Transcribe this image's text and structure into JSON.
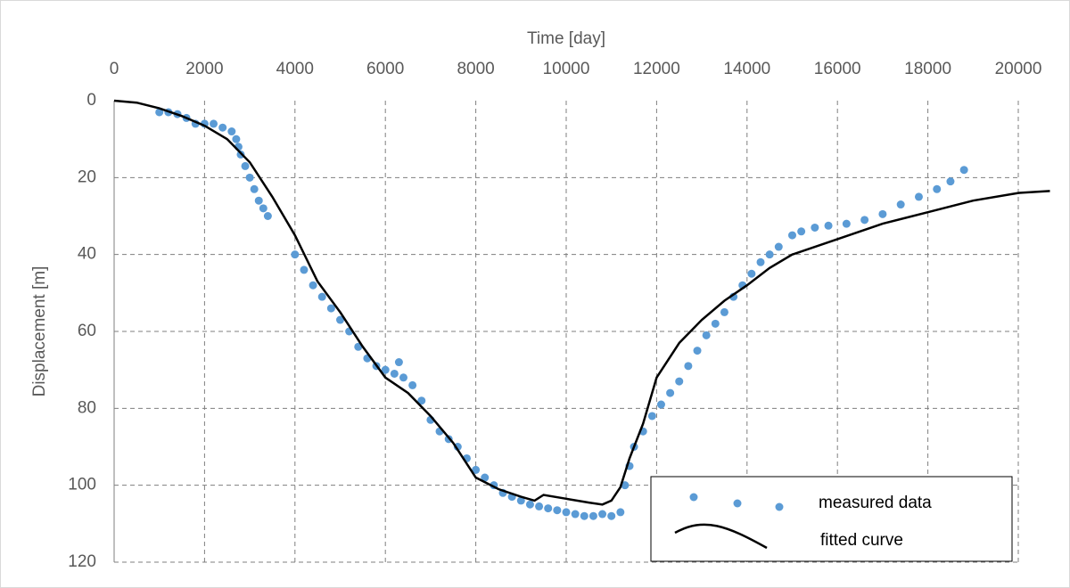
{
  "chart_data": {
    "type": "scatter",
    "xlabel": "Time [day]",
    "ylabel": "Displacement [m]",
    "xlim": [
      0,
      20000
    ],
    "xticks": [
      0,
      2000,
      4000,
      6000,
      8000,
      10000,
      12000,
      14000,
      16000,
      18000,
      20000
    ],
    "ylim": [
      0,
      120
    ],
    "yticks": [
      0,
      20,
      40,
      60,
      80,
      100,
      120
    ],
    "y_inverted": true,
    "x_axis_position": "top",
    "grid": true,
    "legend": "lower right",
    "series": [
      {
        "name": "measured data",
        "type": "scatter",
        "color": "#5b9bd5",
        "x": [
          1000,
          1200,
          1400,
          1600,
          1800,
          2000,
          2200,
          2400,
          2600,
          2700,
          2750,
          2800,
          2900,
          3000,
          3100,
          3200,
          3300,
          3400,
          4000,
          4200,
          4400,
          4600,
          4800,
          5000,
          5200,
          5400,
          5600,
          5800,
          6000,
          6200,
          6300,
          6400,
          6600,
          6800,
          7000,
          7200,
          7400,
          7600,
          7800,
          8000,
          8200,
          8400,
          8600,
          8800,
          9000,
          9200,
          9400,
          9600,
          9800,
          10000,
          10200,
          10400,
          10600,
          10800,
          11000,
          11200,
          11300,
          11400,
          11500,
          11700,
          11900,
          12100,
          12300,
          12500,
          12700,
          12900,
          13100,
          13300,
          13500,
          13700,
          13900,
          14100,
          14300,
          14500,
          14700,
          15000,
          15200,
          15500,
          15800,
          16200,
          16600,
          17000,
          17400,
          17800,
          18200,
          18500,
          18800
        ],
        "values": [
          3,
          3,
          3.5,
          4.5,
          6,
          6,
          6,
          7,
          8,
          10,
          12,
          14,
          17,
          20,
          23,
          26,
          28,
          30,
          40,
          44,
          48,
          51,
          54,
          57,
          60,
          64,
          67,
          69,
          70,
          71,
          68,
          72,
          74,
          78,
          83,
          86,
          88,
          90,
          93,
          96,
          98,
          100,
          102,
          103,
          104,
          105,
          105.5,
          106,
          106.5,
          107,
          107.5,
          108,
          108,
          107.5,
          108,
          107,
          100,
          95,
          90,
          86,
          82,
          79,
          76,
          73,
          69,
          65,
          61,
          58,
          55,
          51,
          48,
          45,
          42,
          40,
          38,
          35,
          34,
          33,
          32.5,
          32,
          31,
          29.5,
          27,
          25,
          23,
          21,
          18
        ]
      },
      {
        "name": "fitted curve",
        "type": "line",
        "color": "#000000",
        "x": [
          0,
          500,
          1000,
          1500,
          2000,
          2500,
          3000,
          3500,
          4000,
          4500,
          5000,
          5500,
          6000,
          6500,
          7000,
          7500,
          8000,
          8500,
          9000,
          9300,
          9500,
          10000,
          10500,
          10800,
          11000,
          11200,
          11400,
          11700,
          12000,
          12500,
          13000,
          13500,
          14000,
          14500,
          15000,
          16000,
          17000,
          18000,
          19000,
          20000,
          20700
        ],
        "values": [
          0,
          0.5,
          2,
          4,
          6.5,
          10,
          16,
          25,
          35,
          47,
          55,
          64,
          72,
          76,
          82,
          89,
          98,
          101,
          103,
          104,
          102.5,
          103.5,
          104.5,
          105,
          104,
          100.5,
          93,
          84,
          72,
          63,
          57,
          52,
          48,
          43.5,
          40,
          36,
          32,
          29,
          26,
          24,
          23.5
        ]
      }
    ]
  }
}
